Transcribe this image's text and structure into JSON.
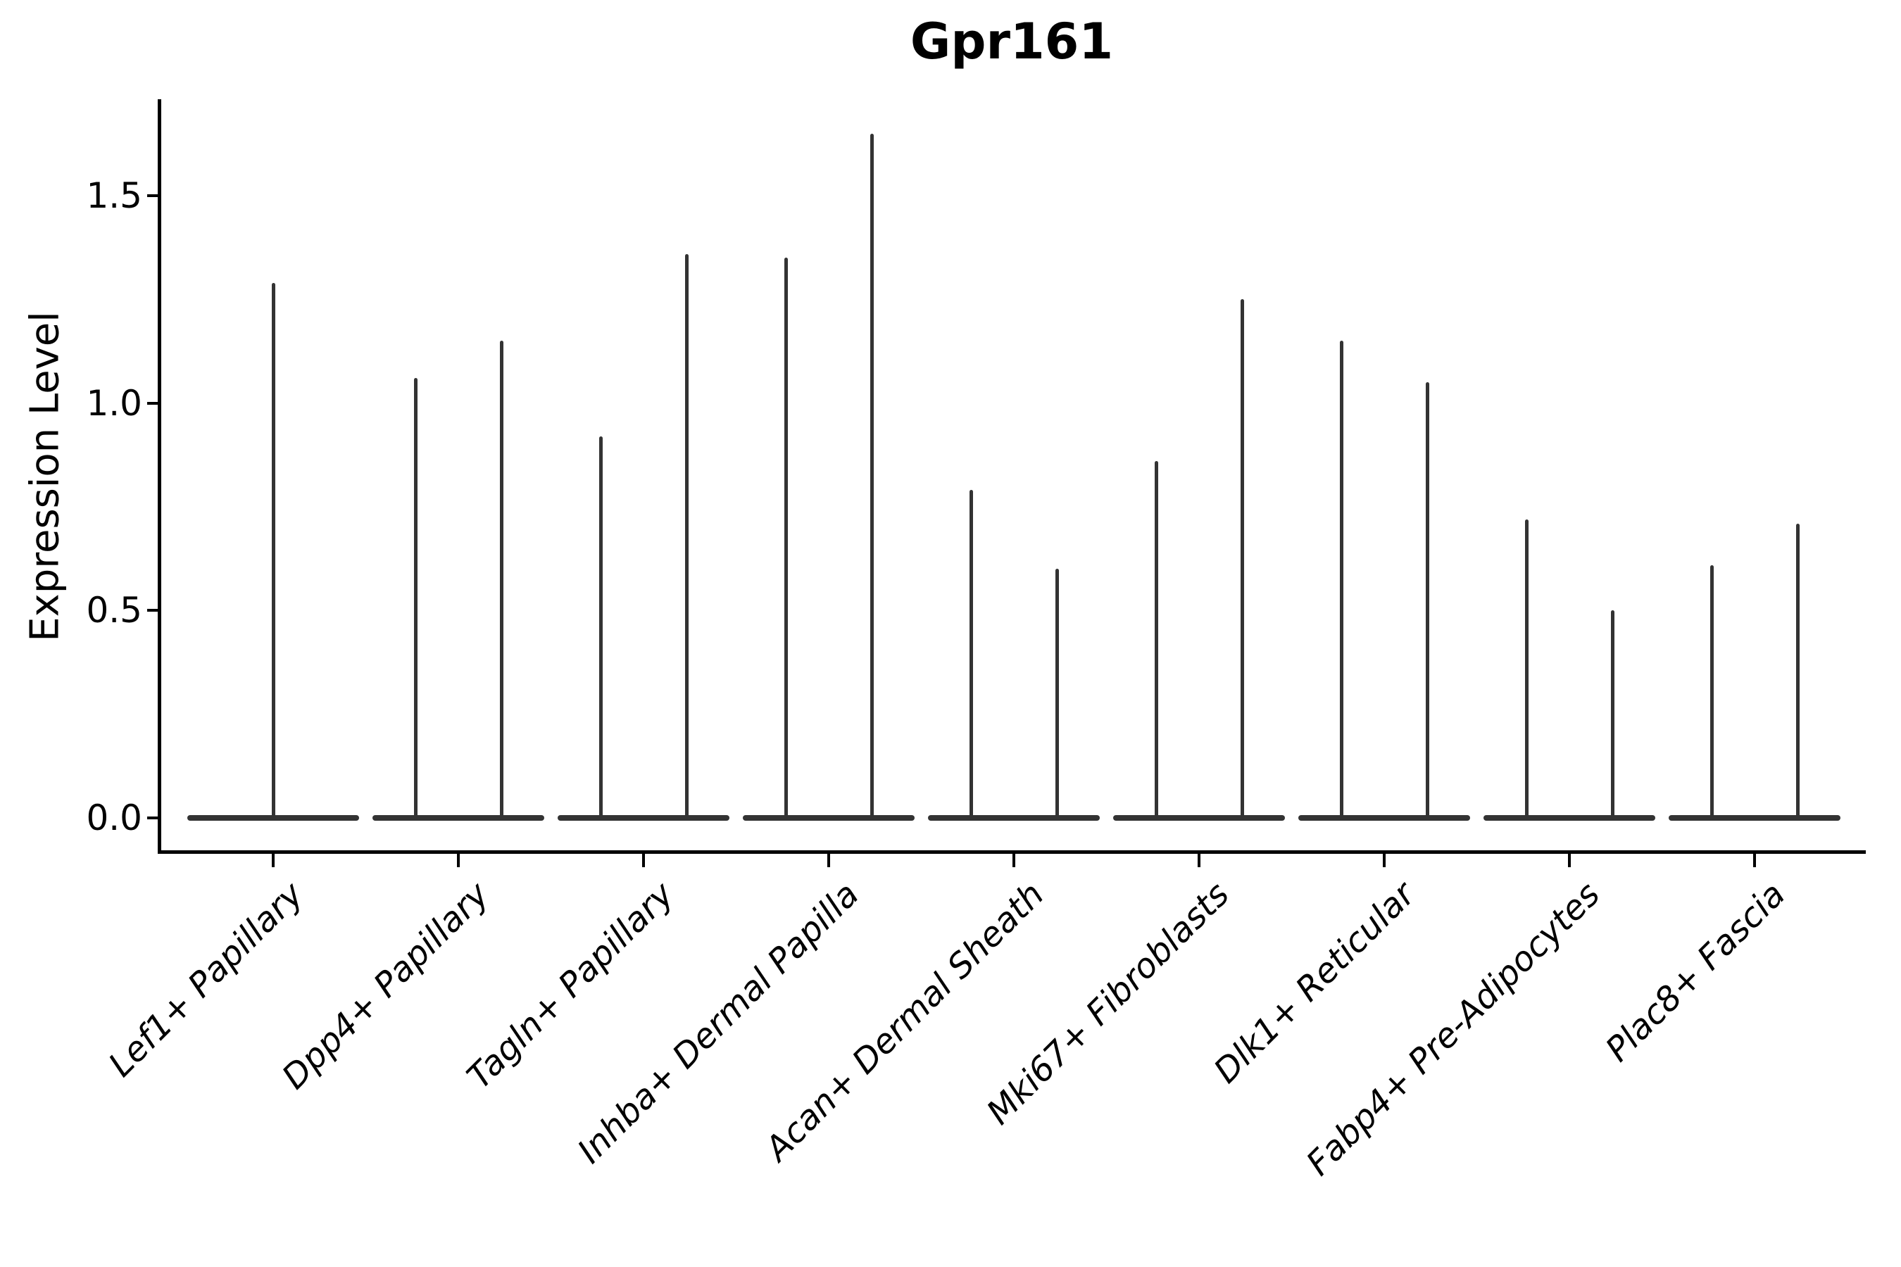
{
  "figure": {
    "title": "Gpr161",
    "y_axis_label": "Expression Level"
  },
  "chart_data": {
    "type": "violin",
    "title": "Gpr161",
    "xlabel": "",
    "ylabel": "Expression Level",
    "ylim": [
      -0.08,
      1.73
    ],
    "yticks": [
      0.0,
      0.5,
      1.0,
      1.5
    ],
    "ytick_labels": [
      "0.0",
      "0.5",
      "1.0",
      "1.5"
    ],
    "grid": false,
    "legend": "none",
    "description": "Needle-thin violins: bulk of expression density sits flat at 0 for every cluster; each violin shows a thin spike up to its maximum expression value.",
    "baseline_value": 0.0,
    "categories": [
      "Lef1+ Papillary",
      "Dpp4+ Papillary",
      "Tagln+ Papillary",
      "Inhba+ Dermal Papilla",
      "Acan+ Dermal Sheath",
      "Mki67+ Fibroblasts",
      "Dlk1+ Reticular",
      "Fabp4+ Pre-Adipocytes",
      "Plac8+ Fascia"
    ],
    "groups": [
      {
        "label": "Lef1+ Papillary",
        "spike_maxima": [
          1.29
        ]
      },
      {
        "label": "Dpp4+ Papillary",
        "spike_maxima": [
          1.06,
          1.15
        ]
      },
      {
        "label": "Tagln+ Papillary",
        "spike_maxima": [
          0.92,
          1.36
        ]
      },
      {
        "label": "Inhba+ Dermal Papilla",
        "spike_maxima": [
          1.35,
          1.65
        ]
      },
      {
        "label": "Acan+ Dermal Sheath",
        "spike_maxima": [
          0.79,
          0.6
        ]
      },
      {
        "label": "Mki67+ Fibroblasts",
        "spike_maxima": [
          0.86,
          1.25
        ]
      },
      {
        "label": "Dlk1+ Reticular",
        "spike_maxima": [
          1.15,
          1.05
        ]
      },
      {
        "label": "Fabp4+ Pre-Adipocytes",
        "spike_maxima": [
          0.72,
          0.5
        ]
      },
      {
        "label": "Plac8+ Fascia",
        "spike_maxima": [
          0.61,
          0.71
        ]
      }
    ],
    "colors": {
      "violin": "#333333",
      "axis": "#000000",
      "text": "#000000",
      "background": "#ffffff"
    }
  }
}
